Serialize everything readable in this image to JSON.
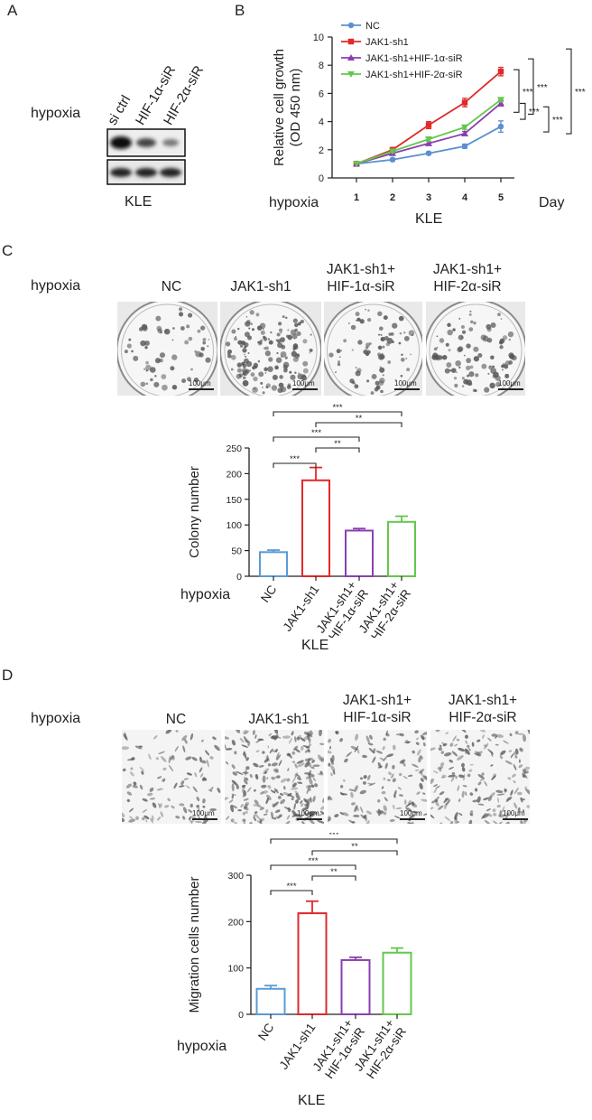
{
  "panel_a": {
    "letter": "A",
    "hypoxia": "hypoxia",
    "lanes": [
      "si ctrl",
      "HIF-1α-siR",
      "HIF-2α-siR"
    ],
    "cell_line": "KLE",
    "band_intensity_row1": [
      1.0,
      0.6,
      0.35
    ],
    "band_intensity_row2": [
      1.0,
      1.0,
      1.0
    ]
  },
  "panel_b": {
    "letter": "B",
    "hypoxia": "hypoxia",
    "day": "Day",
    "cell_line": "KLE",
    "sig": [
      "***",
      "***",
      "***",
      "***",
      "***"
    ]
  },
  "panel_c": {
    "letter": "C",
    "hypoxia": "hypoxia",
    "conditions": [
      {
        "l1": "NC",
        "l2": ""
      },
      {
        "l1": "JAK1-sh1",
        "l2": ""
      },
      {
        "l1": "JAK1-sh1+",
        "l2": "HIF-1α-siR"
      },
      {
        "l1": "JAK1-sh1+",
        "l2": "HIF-2α-siR"
      }
    ],
    "scale": "100μm",
    "cell_line": "KLE",
    "sig": [
      "***",
      "**",
      "***",
      "**",
      "***"
    ]
  },
  "panel_d": {
    "letter": "D",
    "hypoxia": "hypoxia",
    "conditions": [
      {
        "l1": "NC",
        "l2": ""
      },
      {
        "l1": "JAK1-sh1",
        "l2": ""
      },
      {
        "l1": "JAK1-sh1+",
        "l2": "HIF-1α-siR"
      },
      {
        "l1": "JAK1-sh1+",
        "l2": "HIF-2α-siR"
      }
    ],
    "scale": "100μm",
    "cell_line": "KLE",
    "sig": [
      "***",
      "**",
      "***",
      "**",
      "***"
    ]
  },
  "chart_data": [
    {
      "type": "line",
      "ylabel": "Relative cell growth (OD 450 nm)",
      "xlabel": "Day",
      "x": [
        1,
        2,
        3,
        4,
        5
      ],
      "ylim": [
        0,
        10
      ],
      "yticks": [
        0,
        2,
        4,
        6,
        8,
        10
      ],
      "legend_position": "top-left",
      "series": [
        {
          "name": "NC",
          "color": "#5b8fd0",
          "marker": "circle",
          "values": [
            1.0,
            1.3,
            1.75,
            2.25,
            3.65
          ],
          "err": [
            0.05,
            0.1,
            0.1,
            0.15,
            0.4
          ]
        },
        {
          "name": "JAK1-sh1",
          "color": "#e0292a",
          "marker": "square",
          "values": [
            1.0,
            2.0,
            3.75,
            5.35,
            7.55
          ],
          "err": [
            0.05,
            0.15,
            0.25,
            0.3,
            0.3
          ]
        },
        {
          "name": "JAK1-sh1+HIF-1α-siR",
          "color": "#8a3fb0",
          "marker": "triangle-up",
          "values": [
            1.0,
            1.75,
            2.45,
            3.15,
            5.3
          ],
          "err": [
            0.05,
            0.1,
            0.15,
            0.15,
            0.2
          ]
        },
        {
          "name": "JAK1-sh1+HIF-2α-siR",
          "color": "#63c74d",
          "marker": "triangle-down",
          "values": [
            1.0,
            1.9,
            2.75,
            3.6,
            5.55
          ],
          "err": [
            0.05,
            0.1,
            0.15,
            0.15,
            0.15
          ]
        }
      ]
    },
    {
      "type": "bar",
      "ylabel": "Colony number",
      "categories": [
        "NC",
        "JAK1-sh1",
        "JAK1-sh1+ HIF-1α-siR",
        "JAK1-sh1+ HIF-2α-siR"
      ],
      "values": [
        47,
        187,
        89,
        106
      ],
      "err": [
        4,
        25,
        4,
        11
      ],
      "colors": [
        "#5b9bd5",
        "#e0292a",
        "#8a3fb0",
        "#63c74d"
      ],
      "ylim": [
        0,
        250
      ],
      "yticks": [
        0,
        50,
        100,
        150,
        200,
        250
      ]
    },
    {
      "type": "bar",
      "ylabel": "Migration cells number",
      "categories": [
        "NC",
        "JAK1-sh1",
        "JAK1-sh1+ HIF-1α-siR",
        "JAK1-sh1+ HIF-2α-siR"
      ],
      "values": [
        55,
        218,
        117,
        133
      ],
      "err": [
        7,
        26,
        6,
        10
      ],
      "colors": [
        "#5b9bd5",
        "#e0292a",
        "#8a3fb0",
        "#63c74d"
      ],
      "ylim": [
        0,
        300
      ],
      "yticks": [
        0,
        100,
        200,
        300
      ]
    }
  ]
}
